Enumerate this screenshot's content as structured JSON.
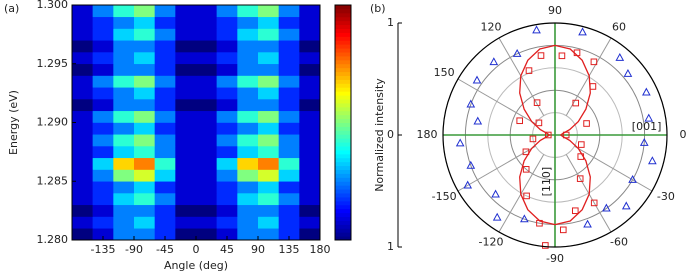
{
  "chart_data": [
    {
      "type": "heatmap",
      "panel_label": "(a)",
      "x_label": "Angle (deg)",
      "y_label": "Energy (eV)",
      "xlim": [
        -180,
        180
      ],
      "xticks": [
        -135,
        -90,
        -45,
        0,
        45,
        90,
        135,
        180
      ],
      "ylim": [
        1.28,
        1.3
      ],
      "yticks": [
        {
          "value": 1.28,
          "label": "1.280"
        },
        {
          "value": 1.285,
          "label": "1.285"
        },
        {
          "value": 1.29,
          "label": "1.290"
        },
        {
          "value": 1.295,
          "label": "1.295"
        },
        {
          "value": 1.3,
          "label": "1.300"
        }
      ],
      "colormap": "jet",
      "zlim": [
        0,
        12
      ],
      "x_bins": [
        -180,
        -150,
        -120,
        -90,
        -60,
        -30,
        0,
        30,
        60,
        90,
        120,
        150,
        180
      ],
      "y_bins": [
        1.28,
        1.281,
        1.282,
        1.283,
        1.284,
        1.285,
        1.286,
        1.287,
        1.288,
        1.289,
        1.29,
        1.291,
        1.292,
        1.293,
        1.294,
        1.295,
        1.296,
        1.297,
        1.298,
        1.299,
        1.3
      ],
      "z": [
        [
          0,
          1,
          3,
          3,
          2,
          0,
          0,
          1,
          3,
          3,
          2,
          0
        ],
        [
          1,
          2,
          3,
          4,
          2,
          1,
          1,
          2,
          3,
          4,
          2,
          1
        ],
        [
          0,
          1,
          3,
          3,
          2,
          0,
          0,
          1,
          3,
          3,
          2,
          0
        ],
        [
          1,
          2,
          4,
          5,
          3,
          1,
          1,
          2,
          4,
          5,
          3,
          1
        ],
        [
          1,
          2,
          3,
          4,
          2,
          1,
          1,
          2,
          3,
          4,
          2,
          1
        ],
        [
          1,
          3,
          6,
          7,
          4,
          1,
          1,
          3,
          6,
          7,
          4,
          1
        ],
        [
          1,
          4,
          8,
          9,
          5,
          1,
          1,
          4,
          8,
          9,
          5,
          1
        ],
        [
          1,
          2,
          4,
          5,
          3,
          1,
          1,
          2,
          4,
          5,
          3,
          1
        ],
        [
          1,
          3,
          5,
          6,
          3,
          1,
          1,
          3,
          5,
          6,
          3,
          1
        ],
        [
          1,
          2,
          3,
          4,
          2,
          1,
          1,
          2,
          3,
          4,
          2,
          1
        ],
        [
          1,
          3,
          5,
          6,
          3,
          1,
          1,
          3,
          5,
          6,
          3,
          1
        ],
        [
          0,
          1,
          3,
          3,
          2,
          0,
          0,
          1,
          3,
          3,
          2,
          0
        ],
        [
          1,
          2,
          3,
          4,
          2,
          1,
          1,
          2,
          3,
          4,
          2,
          1
        ],
        [
          1,
          3,
          5,
          6,
          3,
          1,
          1,
          3,
          5,
          6,
          3,
          1
        ],
        [
          0,
          1,
          3,
          3,
          2,
          0,
          0,
          1,
          3,
          3,
          2,
          0
        ],
        [
          1,
          2,
          3,
          4,
          2,
          1,
          1,
          2,
          3,
          4,
          2,
          1
        ],
        [
          0,
          1,
          3,
          3,
          2,
          0,
          0,
          1,
          3,
          3,
          2,
          0
        ],
        [
          1,
          2,
          4,
          5,
          3,
          1,
          1,
          2,
          4,
          5,
          3,
          1
        ],
        [
          1,
          2,
          3,
          4,
          2,
          1,
          1,
          2,
          3,
          4,
          2,
          1
        ],
        [
          1,
          3,
          5,
          6,
          3,
          1,
          1,
          3,
          5,
          6,
          3,
          1
        ]
      ]
    },
    {
      "type": "polar",
      "panel_label": "(b)",
      "y_label": "Normalized intensity",
      "ylim": [
        -1,
        1
      ],
      "yticks": [
        1,
        0,
        {
          "value": -1,
          "label": "1"
        }
      ],
      "rlim": [
        0,
        1
      ],
      "rgrid": [
        0.2,
        0.4,
        0.6,
        0.8,
        1
      ],
      "theta_ticks": [
        0,
        60,
        90,
        120,
        150,
        180,
        -150,
        -120,
        -90,
        -60,
        -30
      ],
      "axis_color": "#3a9a3a",
      "annotations": [
        {
          "text": "[001]",
          "theta": 0,
          "r": 0.55
        },
        {
          "text": "[110]",
          "theta": -90,
          "r": 0.55
        }
      ],
      "series": [
        {
          "type": "line",
          "color": "#e02020",
          "theta": [
            0,
            10,
            20,
            30,
            40,
            50,
            60,
            70,
            80,
            90,
            100,
            110,
            120,
            130,
            140,
            150,
            160,
            170,
            180,
            190,
            200,
            210,
            220,
            230,
            240,
            250,
            260,
            270,
            280,
            290,
            300,
            310,
            320,
            330,
            340,
            350,
            360
          ],
          "r": [
            0.05,
            0.07,
            0.14,
            0.24,
            0.36,
            0.49,
            0.61,
            0.71,
            0.78,
            0.8,
            0.78,
            0.71,
            0.61,
            0.49,
            0.36,
            0.24,
            0.14,
            0.07,
            0.05,
            0.07,
            0.14,
            0.24,
            0.36,
            0.49,
            0.61,
            0.71,
            0.78,
            0.8,
            0.78,
            0.71,
            0.61,
            0.49,
            0.36,
            0.24,
            0.14,
            0.07,
            0.05
          ]
        },
        {
          "type": "scatter",
          "marker": "square",
          "color": "#e02020",
          "theta": [
            62,
            52,
            57,
            75,
            85,
            100,
            112,
            119,
            143,
            158,
            180,
            0,
            20,
            -20,
            -40,
            -60,
            -75,
            -85,
            -100,
            -115,
            -130,
            -150,
            -170,
            -60,
            -95
          ],
          "r": [
            0.74,
            0.55,
            0.34,
            0.76,
            0.71,
            0.72,
            0.62,
            0.33,
            0.18,
            0.34,
            0.06,
            0.1,
            0.3,
            0.25,
            0.3,
            0.45,
            0.7,
            0.85,
            0.8,
            0.6,
            0.4,
            0.3,
            0.2,
            0.7,
            0.99
          ]
        },
        {
          "type": "scatter",
          "marker": "triangle",
          "color": "#2030d0",
          "theta": [
            100,
            115,
            130,
            145,
            160,
            170,
            -175,
            -160,
            -150,
            -135,
            -125,
            -110,
            -70,
            -55,
            -45,
            -30,
            -15,
            -5,
            10,
            25,
            40,
            50,
            75
          ],
          "r": [
            0.95,
            0.8,
            0.85,
            0.85,
            0.8,
            0.7,
            0.85,
            0.8,
            0.9,
            0.75,
            0.9,
            0.8,
            0.85,
            0.8,
            0.9,
            0.8,
            0.9,
            0.8,
            0.85,
            0.9,
            0.85,
            0.9,
            0.95
          ]
        }
      ]
    }
  ]
}
